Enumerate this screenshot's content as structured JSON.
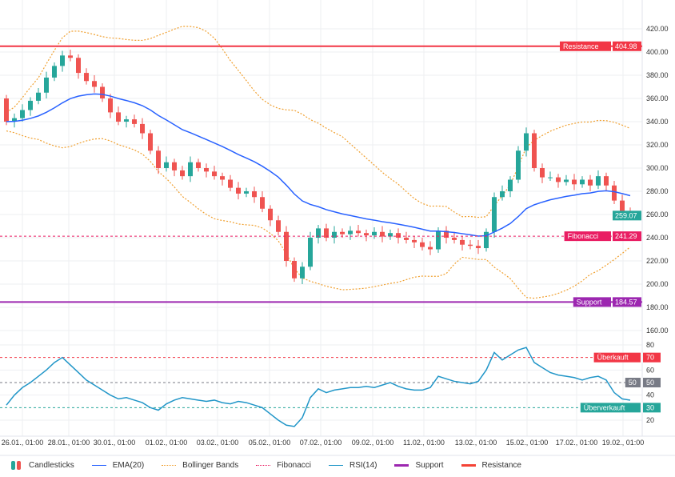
{
  "chart_data": {
    "type": "candlestick",
    "price_axis": {
      "ticks": [
        420,
        400,
        380,
        360,
        340,
        320,
        300,
        280,
        260,
        240,
        220,
        200,
        180,
        160
      ],
      "range": [
        160,
        420
      ]
    },
    "rsi_axis": {
      "ticks": [
        80,
        60,
        40,
        20
      ],
      "range": [
        10,
        90
      ]
    },
    "x_labels": [
      "26.01., 01:00",
      "28.01., 01:00",
      "30.01., 01:00",
      "01.02., 01:00",
      "03.02., 01:00",
      "05.02., 01:00",
      "07.02., 01:00",
      "09.02., 01:00",
      "11.02., 01:00",
      "13.02., 01:00",
      "15.02., 01:00",
      "17.02., 01:00",
      "19.02., 01:00"
    ],
    "first_open": 360,
    "closes": [
      340,
      343,
      350,
      358,
      365,
      378,
      388,
      397,
      395,
      382,
      375,
      370,
      360,
      348,
      340,
      342,
      338,
      330,
      315,
      300,
      305,
      298,
      293,
      305,
      300,
      297,
      293,
      290,
      283,
      278,
      280,
      275,
      265,
      255,
      245,
      220,
      205,
      215,
      240,
      248,
      240,
      245,
      243,
      246,
      244,
      242,
      245,
      241,
      244,
      240,
      238,
      236,
      232,
      230,
      246,
      240,
      238,
      234,
      233,
      231,
      245,
      275,
      280,
      290,
      315,
      330,
      300,
      292,
      292,
      288,
      290,
      286,
      290,
      285,
      293,
      285,
      272,
      263,
      259
    ],
    "rsi": [
      32,
      40,
      46,
      50,
      55,
      60,
      66,
      70,
      64,
      58,
      52,
      48,
      44,
      40,
      37,
      38,
      36,
      34,
      30,
      28,
      33,
      36,
      38,
      37,
      36,
      35,
      36,
      34,
      33,
      35,
      34,
      32,
      30,
      25,
      20,
      16,
      15,
      22,
      38,
      45,
      42,
      44,
      45,
      46,
      46,
      47,
      46,
      48,
      50,
      47,
      45,
      44,
      44,
      46,
      55,
      53,
      51,
      50,
      49,
      51,
      60,
      74,
      68,
      72,
      76,
      78,
      66,
      62,
      58,
      56,
      55,
      54,
      52,
      54,
      55,
      52,
      42,
      37,
      36
    ],
    "series": [
      {
        "name": "Candlesticks",
        "color_up": "#26a69a",
        "color_down": "#ef5350"
      },
      {
        "name": "EMA(20)",
        "color": "#2962ff"
      },
      {
        "name": "Bollinger Bands",
        "color": "#f0a030"
      },
      {
        "name": "Fibonacci",
        "color": "#e91e63"
      },
      {
        "name": "RSI(14)",
        "color": "#2196c8"
      },
      {
        "name": "Support",
        "color": "#9c27b0"
      },
      {
        "name": "Resistance",
        "color": "#f44336"
      }
    ],
    "levels": [
      {
        "label": "Resistance",
        "value": 404.98,
        "value_text": "404.98",
        "color": "#f23645"
      },
      {
        "label": "Fibonacci",
        "value": 241.29,
        "value_text": "241.29",
        "color": "#e91e63"
      },
      {
        "label": "Support",
        "value": 184.57,
        "value_text": "184.57",
        "color": "#9c27b0"
      }
    ],
    "last_price": {
      "value": 259.07,
      "text": "259.07",
      "color": "#26a69a"
    },
    "rsi_levels": [
      {
        "label": "Überkauft",
        "value": 70,
        "value_text": "70",
        "color": "#f23645"
      },
      {
        "label": "50",
        "value": 50,
        "value_text": "50",
        "color": "#787b86"
      },
      {
        "label": "Überverkauft",
        "value": 30,
        "value_text": "30",
        "color": "#26a69a"
      }
    ]
  }
}
